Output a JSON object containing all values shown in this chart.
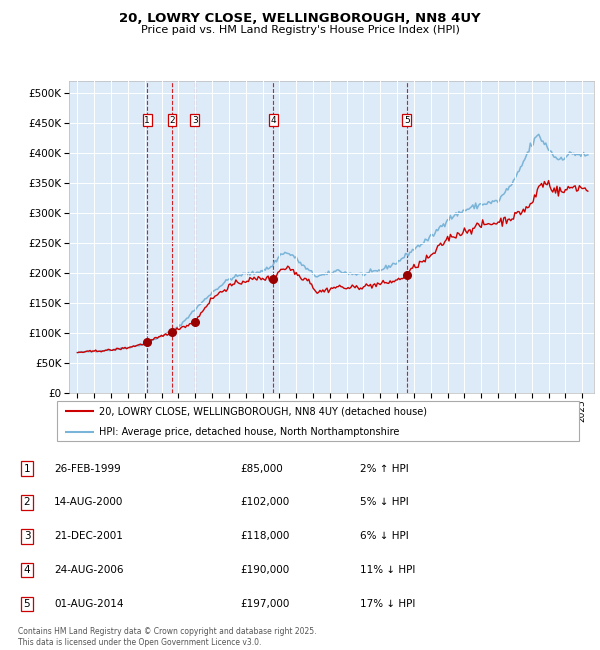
{
  "title": "20, LOWRY CLOSE, WELLINGBOROUGH, NN8 4UY",
  "subtitle": "Price paid vs. HM Land Registry's House Price Index (HPI)",
  "hpi_label": "HPI: Average price, detached house, North Northamptonshire",
  "price_label": "20, LOWRY CLOSE, WELLINGBOROUGH, NN8 4UY (detached house)",
  "hpi_color": "#7ab4d8",
  "price_color": "#cc0000",
  "marker_color": "#990000",
  "vline_color": "#cc0000",
  "background_color": "#ddeaf7",
  "grid_color": "#ffffff",
  "transactions": [
    {
      "num": 1,
      "price": 85000,
      "x": 1999.15
    },
    {
      "num": 2,
      "price": 102000,
      "x": 2000.62
    },
    {
      "num": 3,
      "price": 118000,
      "x": 2001.97
    },
    {
      "num": 4,
      "price": 190000,
      "x": 2006.65
    },
    {
      "num": 5,
      "price": 197000,
      "x": 2014.58
    }
  ],
  "table_rows": [
    {
      "num": 1,
      "date": "26-FEB-1999",
      "price": "£85,000",
      "hpi_rel": "2% ↑ HPI"
    },
    {
      "num": 2,
      "date": "14-AUG-2000",
      "price": "£102,000",
      "hpi_rel": "5% ↓ HPI"
    },
    {
      "num": 3,
      "date": "21-DEC-2001",
      "price": "£118,000",
      "hpi_rel": "6% ↓ HPI"
    },
    {
      "num": 4,
      "date": "24-AUG-2006",
      "price": "£190,000",
      "hpi_rel": "11% ↓ HPI"
    },
    {
      "num": 5,
      "date": "01-AUG-2014",
      "price": "£197,000",
      "hpi_rel": "17% ↓ HPI"
    }
  ],
  "footer": "Contains HM Land Registry data © Crown copyright and database right 2025.\nThis data is licensed under the Open Government Licence v3.0.",
  "ylim": [
    0,
    520000
  ],
  "xlim_start": 1994.5,
  "xlim_end": 2025.7,
  "hpi_anchors": [
    [
      1995.0,
      68000
    ],
    [
      1996.0,
      70000
    ],
    [
      1997.0,
      72000
    ],
    [
      1998.0,
      76000
    ],
    [
      1999.0,
      82000
    ],
    [
      2000.0,
      95000
    ],
    [
      2001.0,
      110000
    ],
    [
      2002.0,
      140000
    ],
    [
      2003.0,
      168000
    ],
    [
      2004.0,
      190000
    ],
    [
      2004.8,
      198000
    ],
    [
      2005.5,
      200000
    ],
    [
      2006.5,
      210000
    ],
    [
      2007.2,
      235000
    ],
    [
      2007.8,
      230000
    ],
    [
      2008.5,
      210000
    ],
    [
      2009.2,
      195000
    ],
    [
      2009.8,
      198000
    ],
    [
      2010.5,
      205000
    ],
    [
      2011.0,
      200000
    ],
    [
      2012.0,
      198000
    ],
    [
      2013.0,
      205000
    ],
    [
      2014.0,
      218000
    ],
    [
      2015.0,
      240000
    ],
    [
      2016.0,
      260000
    ],
    [
      2017.0,
      290000
    ],
    [
      2018.0,
      305000
    ],
    [
      2019.0,
      315000
    ],
    [
      2020.0,
      320000
    ],
    [
      2021.0,
      355000
    ],
    [
      2022.0,
      415000
    ],
    [
      2022.4,
      430000
    ],
    [
      2022.8,
      415000
    ],
    [
      2023.5,
      390000
    ],
    [
      2024.0,
      395000
    ],
    [
      2024.5,
      400000
    ],
    [
      2025.3,
      395000
    ]
  ],
  "price_anchors": [
    [
      1995.0,
      68000
    ],
    [
      1996.0,
      70000
    ],
    [
      1997.0,
      72000
    ],
    [
      1998.0,
      76000
    ],
    [
      1999.0,
      83000
    ],
    [
      1999.15,
      85000
    ],
    [
      2000.0,
      95000
    ],
    [
      2000.62,
      102000
    ],
    [
      2001.0,
      108000
    ],
    [
      2001.97,
      118000
    ],
    [
      2002.5,
      140000
    ],
    [
      2003.0,
      158000
    ],
    [
      2004.0,
      178000
    ],
    [
      2005.0,
      188000
    ],
    [
      2006.0,
      192000
    ],
    [
      2006.65,
      190000
    ],
    [
      2007.0,
      205000
    ],
    [
      2007.5,
      210000
    ],
    [
      2007.8,
      205000
    ],
    [
      2008.2,
      195000
    ],
    [
      2008.8,
      188000
    ],
    [
      2009.2,
      168000
    ],
    [
      2009.8,
      172000
    ],
    [
      2010.5,
      178000
    ],
    [
      2011.0,
      175000
    ],
    [
      2012.0,
      178000
    ],
    [
      2013.0,
      182000
    ],
    [
      2014.0,
      188000
    ],
    [
      2014.58,
      197000
    ],
    [
      2015.0,
      210000
    ],
    [
      2016.0,
      228000
    ],
    [
      2017.0,
      258000
    ],
    [
      2018.0,
      270000
    ],
    [
      2019.0,
      280000
    ],
    [
      2020.0,
      285000
    ],
    [
      2021.0,
      295000
    ],
    [
      2022.0,
      315000
    ],
    [
      2022.5,
      348000
    ],
    [
      2023.0,
      350000
    ],
    [
      2023.3,
      340000
    ],
    [
      2023.8,
      335000
    ],
    [
      2024.5,
      345000
    ],
    [
      2025.3,
      340000
    ]
  ]
}
